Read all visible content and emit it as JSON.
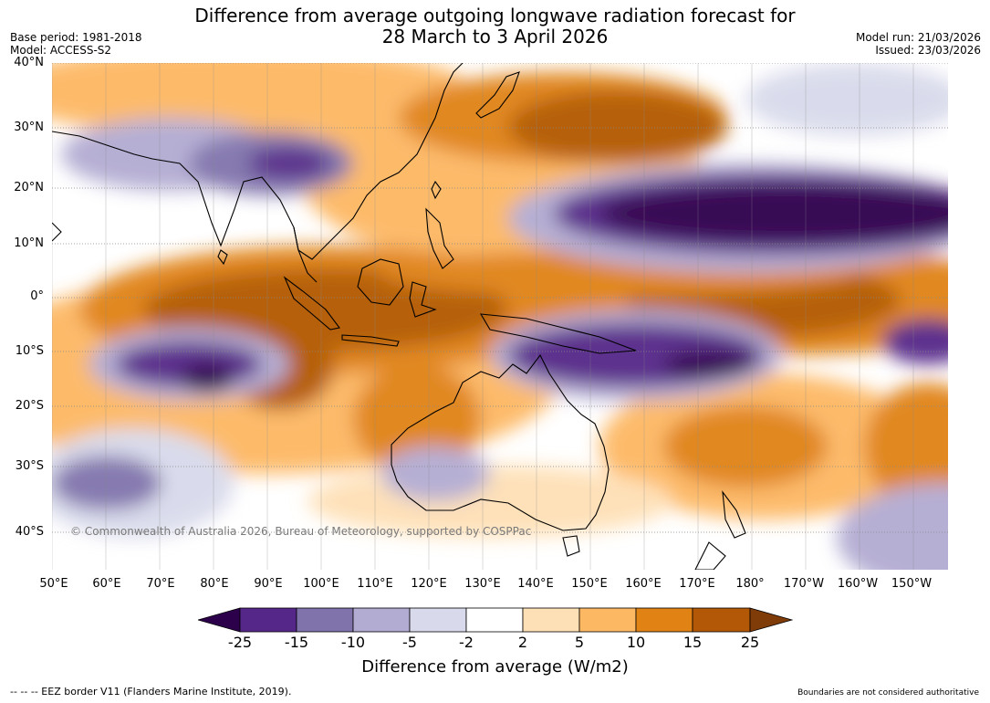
{
  "title": {
    "line1": "Difference from average outgoing longwave radiation forecast for",
    "line2": "28 March to 3 April 2026"
  },
  "meta": {
    "base_period": "Base period: 1981-2018",
    "model": "Model: ACCESS-S2",
    "model_run": "Model run: 21/03/2026",
    "issued": "Issued: 23/03/2026"
  },
  "map": {
    "lat_labels": [
      "40°N",
      "30°N",
      "20°N",
      "10°N",
      "0°",
      "10°S",
      "20°S",
      "30°S",
      "40°S"
    ],
    "lon_labels": [
      "50°E",
      "60°E",
      "70°E",
      "80°E",
      "90°E",
      "100°E",
      "110°E",
      "120°E",
      "130°E",
      "140°E",
      "150°E",
      "160°E",
      "170°E",
      "180°",
      "170°W",
      "160°W",
      "150°W"
    ],
    "credit": "© Commonwealth of Australia 2026, Bureau of Meteorology, supported by COSPPac",
    "ocean_color": "#ffffff",
    "graticule_color": "#888888"
  },
  "legend": {
    "title": "Difference from average (W/m2)",
    "tick_labels": [
      "-25",
      "-15",
      "-10",
      "-5",
      "-2",
      "2",
      "5",
      "10",
      "15",
      "25"
    ],
    "colors": [
      "#2d004b",
      "#542788",
      "#8073ac",
      "#b2abd2",
      "#d8daeb",
      "#ffffff",
      "#fee0b6",
      "#fdb863",
      "#e08214",
      "#b35806",
      "#7f3b08"
    ]
  },
  "footer": {
    "eez_note": "--  --  -- EEZ border V11 (Flanders Marine Institute, 2019).",
    "boundaries_note": "Boundaries are not considered authoritative"
  }
}
